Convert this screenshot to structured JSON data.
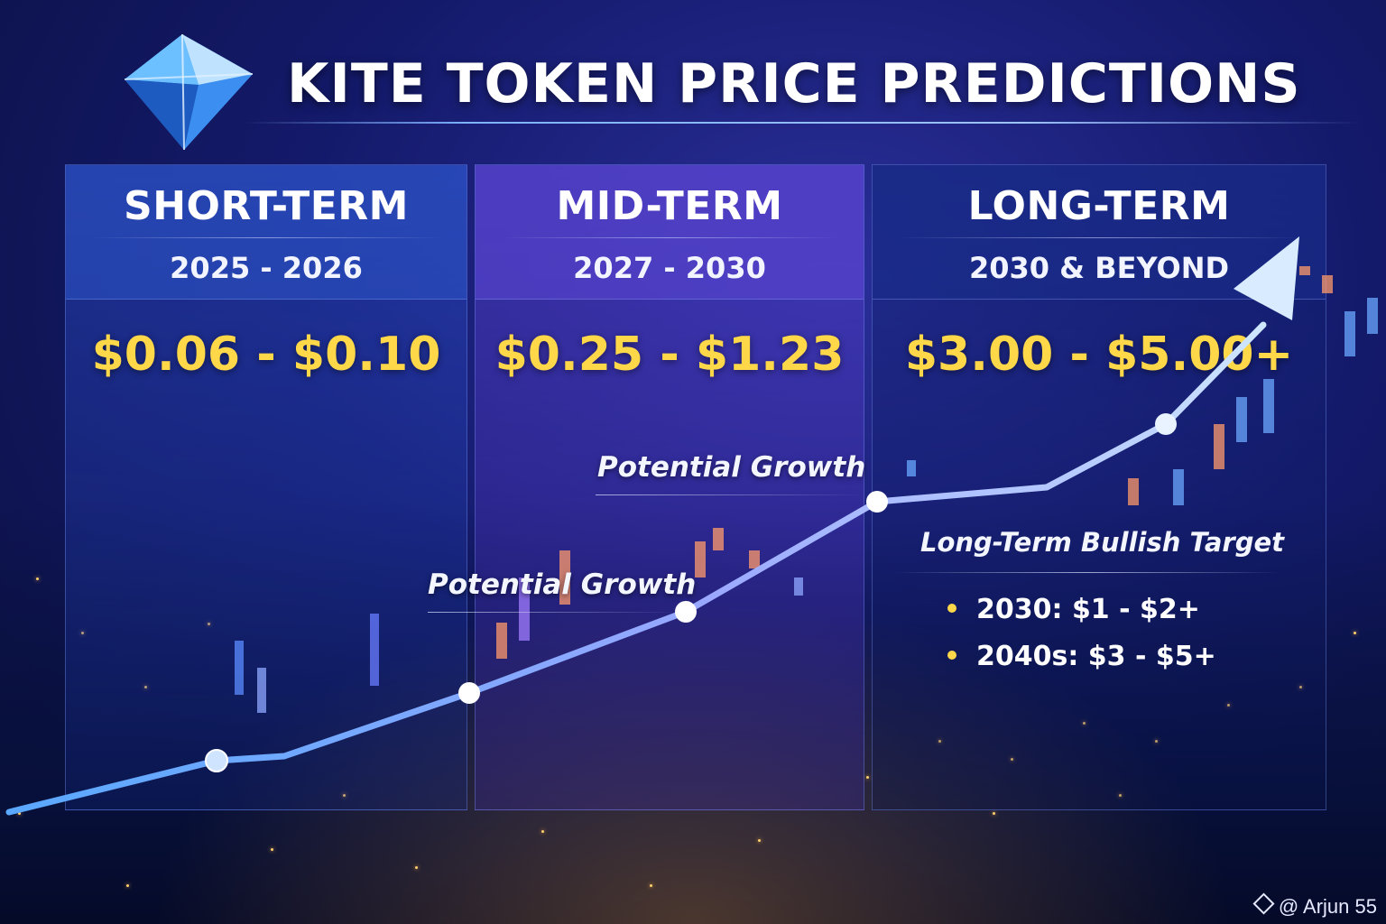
{
  "title": "KITE TOKEN PRICE PREDICTIONS",
  "logo_icon": "kite-diamond-icon",
  "colors": {
    "price": "#ffd84a",
    "line": "#8fc8ff",
    "background": "#141a6b"
  },
  "periods": [
    {
      "term": "SHORT-TERM",
      "years": "2025 - 2026",
      "range": "$0.06 - $0.10"
    },
    {
      "term": "MID-TERM",
      "years": "2027 - 2030",
      "range": "$0.25 - $1.23"
    },
    {
      "term": "LONG-TERM",
      "years": "2030 & BEYOND",
      "range": "$3.00 - $5.00+"
    }
  ],
  "growth_labels": [
    "Potential Growth",
    "Potential Growth"
  ],
  "bullish": {
    "title": "Long-Term Bullish Target",
    "items": [
      "2030: $1 - $2+",
      "2040s: $3 - $5+"
    ]
  },
  "credit": "@ Arjun 55"
}
